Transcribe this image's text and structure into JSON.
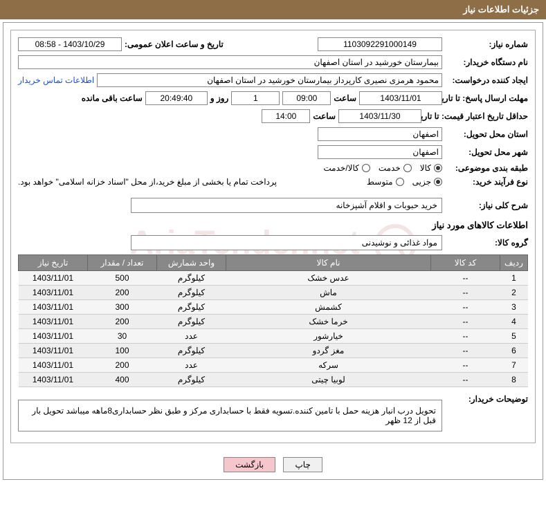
{
  "header": {
    "title": "جزئیات اطلاعات نیاز"
  },
  "fields": {
    "need_number_label": "شماره نیاز:",
    "need_number": "1103092291000149",
    "announce_label": "تاریخ و ساعت اعلان عمومی:",
    "announce_value": "1403/10/29 - 08:58",
    "buyer_device_label": "نام دستگاه خریدار:",
    "buyer_device": "بیمارستان خورشید در استان اصفهان",
    "requester_label": "ایجاد کننده درخواست:",
    "requester": "محمود هرمزی نصیری کارپرداز بیمارستان خورشید در استان اصفهان",
    "contact_link": "اطلاعات تماس خریدار",
    "response_deadline_label": "مهلت ارسال پاسخ: تا تاریخ:",
    "response_date": "1403/11/01",
    "time_label": "ساعت",
    "response_time": "09:00",
    "days": "1",
    "days_and": "روز و",
    "countdown": "20:49:40",
    "remain": "ساعت باقی مانده",
    "price_validity_label": "حداقل تاریخ اعتبار قیمت: تا تاریخ:",
    "price_validity_date": "1403/11/30",
    "price_validity_time": "14:00",
    "delivery_province_label": "استان محل تحویل:",
    "delivery_province": "اصفهان",
    "delivery_city_label": "شهر محل تحویل:",
    "delivery_city": "اصفهان",
    "category_label": "طبقه بندی موضوعی:",
    "category_options": {
      "goods": "کالا",
      "service": "خدمت",
      "both": "کالا/خدمت"
    },
    "purchase_type_label": "نوع فرآیند خرید:",
    "purchase_options": {
      "partial": "جزیی",
      "medium": "متوسط"
    },
    "payment_note": "پرداخت تمام یا بخشی از مبلغ خرید،از محل \"اسناد خزانه اسلامی\" خواهد بود.",
    "general_desc_label": "شرح کلی نیاز:",
    "general_desc": "خرید حبوبات و اقلام آشپزخانه",
    "goods_section": "اطلاعات کالاهای مورد نیاز",
    "goods_group_label": "گروه کالا:",
    "goods_group": "مواد غذائی و نوشیدنی",
    "buyer_notes_label": "توضیحات خریدار:",
    "buyer_notes": "تحویل درب انبار هزینه حمل با تامین کننده.تسویه فقط با حسابداری مرکز و طبق نظر حسابداری8ماهه میباشد تحویل بار قبل از 12 ظهر"
  },
  "table": {
    "headers": {
      "row": "ردیف",
      "code": "کد کالا",
      "name": "نام کالا",
      "unit": "واحد شمارش",
      "qty": "تعداد / مقدار",
      "date": "تاریخ نیاز"
    },
    "rows": [
      {
        "n": "1",
        "code": "--",
        "name": "عدس خشک",
        "unit": "کیلوگرم",
        "qty": "500",
        "date": "1403/11/01"
      },
      {
        "n": "2",
        "code": "--",
        "name": "ماش",
        "unit": "کیلوگرم",
        "qty": "200",
        "date": "1403/11/01"
      },
      {
        "n": "3",
        "code": "--",
        "name": "کشمش",
        "unit": "کیلوگرم",
        "qty": "300",
        "date": "1403/11/01"
      },
      {
        "n": "4",
        "code": "--",
        "name": "خرما خشک",
        "unit": "کیلوگرم",
        "qty": "200",
        "date": "1403/11/01"
      },
      {
        "n": "5",
        "code": "--",
        "name": "خیارشور",
        "unit": "عدد",
        "qty": "30",
        "date": "1403/11/01"
      },
      {
        "n": "6",
        "code": "--",
        "name": "مغز گردو",
        "unit": "کیلوگرم",
        "qty": "100",
        "date": "1403/11/01"
      },
      {
        "n": "7",
        "code": "--",
        "name": "سرکه",
        "unit": "عدد",
        "qty": "200",
        "date": "1403/11/01"
      },
      {
        "n": "8",
        "code": "--",
        "name": "لوبیا چیتی",
        "unit": "کیلوگرم",
        "qty": "400",
        "date": "1403/11/01"
      }
    ]
  },
  "buttons": {
    "print": "چاپ",
    "back": "بازگشت"
  },
  "watermark": "AriaTender.net"
}
